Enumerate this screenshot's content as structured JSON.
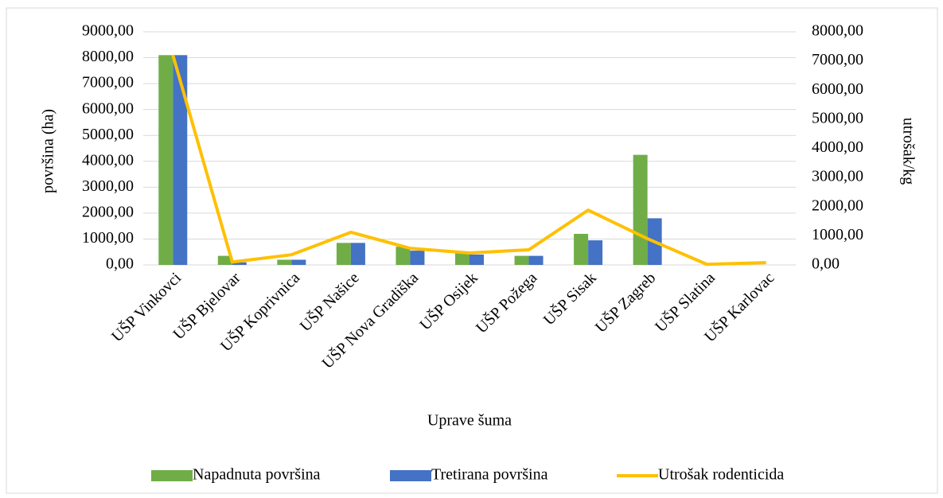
{
  "chart_data": {
    "type": "bar",
    "x_label": "Uprave šuma",
    "y_label": "površina (ha)",
    "y2_label": "utrošak/kg",
    "categories": [
      "UŠP Vinkovci",
      "UŠP Bjelovar",
      "UŠP Koprivnica",
      "UŠP Našice",
      "UŠP Nova Gradiška",
      "UŠP Osijek",
      "UŠP Požega",
      "UŠP Sisak",
      "UŠP Zagreb",
      "UŠP Slatina",
      "UŠP Karlovac"
    ],
    "series": [
      {
        "name": "Napadnuta površina",
        "type": "bar",
        "color": "#70ad47",
        "values": [
          8100,
          350,
          200,
          850,
          700,
          450,
          350,
          1200,
          4250,
          0,
          0
        ]
      },
      {
        "name": "Tretirana površina",
        "type": "bar",
        "color": "#4472c4",
        "values": [
          8100,
          100,
          200,
          850,
          550,
          400,
          350,
          950,
          1800,
          0,
          0
        ]
      },
      {
        "name": "Utrošak rodenticida",
        "type": "line",
        "axis": "y2",
        "color": "#ffc000",
        "values": [
          7200,
          100,
          350,
          1120,
          570,
          410,
          520,
          1880,
          900,
          20,
          80
        ]
      }
    ],
    "ylim": [
      0,
      9000
    ],
    "yticks": [
      {
        "value": 0,
        "label": "0,00"
      },
      {
        "value": 1000,
        "label": "1000,00"
      },
      {
        "value": 2000,
        "label": "2000,00"
      },
      {
        "value": 3000,
        "label": "3000,00"
      },
      {
        "value": 4000,
        "label": "4000,00"
      },
      {
        "value": 5000,
        "label": "5000,00"
      },
      {
        "value": 6000,
        "label": "6000,00"
      },
      {
        "value": 7000,
        "label": "7000,00"
      },
      {
        "value": 8000,
        "label": "8000,00"
      },
      {
        "value": 9000,
        "label": "9000,00"
      }
    ],
    "y2lim": [
      0,
      8000
    ],
    "y2ticks": [
      {
        "value": 0,
        "label": "0,00"
      },
      {
        "value": 1000,
        "label": "1000,00"
      },
      {
        "value": 2000,
        "label": "2000,00"
      },
      {
        "value": 3000,
        "label": "3000,00"
      },
      {
        "value": 4000,
        "label": "4000,00"
      },
      {
        "value": 5000,
        "label": "5000,00"
      },
      {
        "value": 6000,
        "label": "6000,00"
      },
      {
        "value": 7000,
        "label": "7000,00"
      },
      {
        "value": 8000,
        "label": "8000,00"
      }
    ],
    "grid": true,
    "legend": "bottom"
  }
}
